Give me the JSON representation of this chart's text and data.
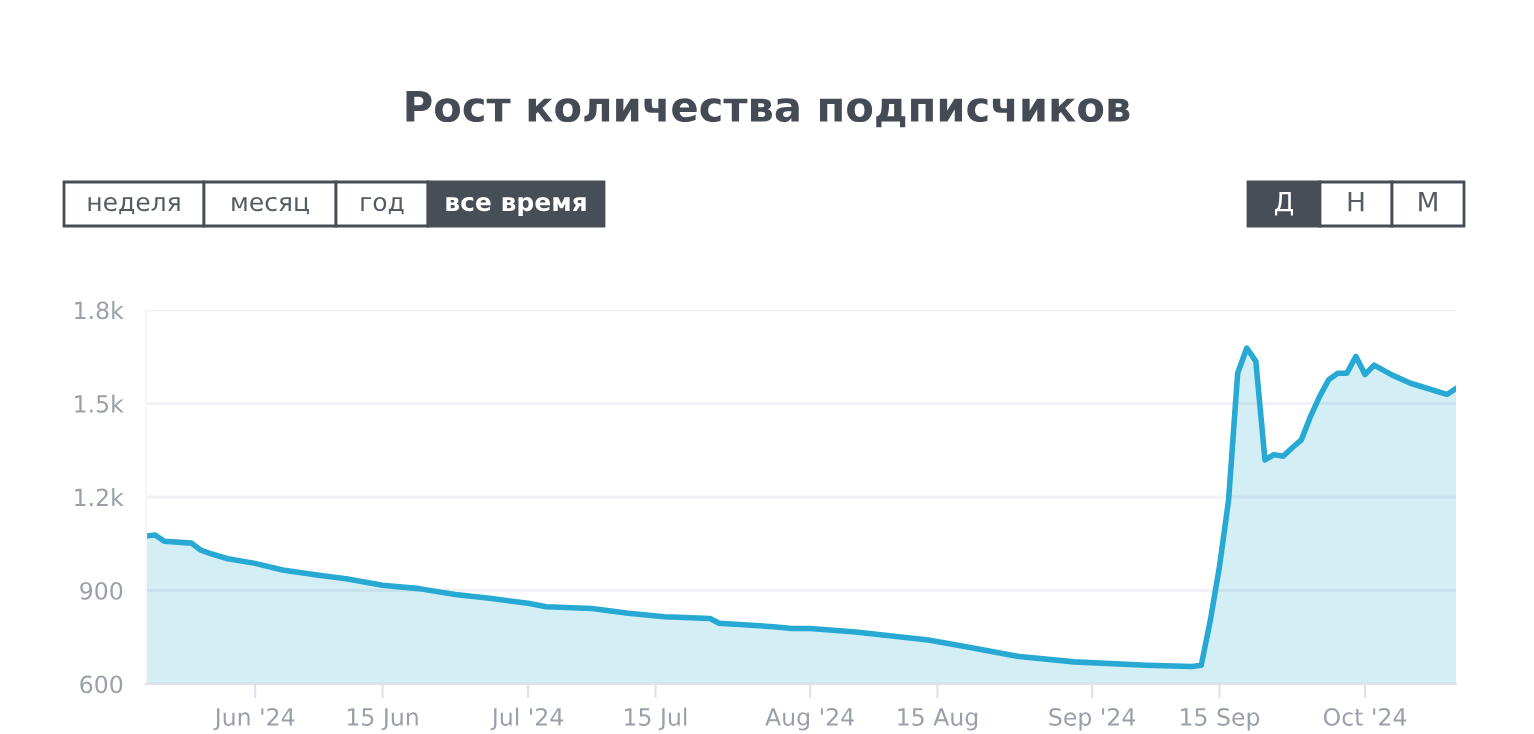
{
  "chart_data": {
    "type": "area",
    "title": "Рост количества подписчиков",
    "annotations": [
      "неделя",
      "месяц",
      "год",
      "все время",
      "Д",
      "Н",
      "М"
    ],
    "x": [
      "2024-05-20",
      "2024-05-21",
      "2024-05-22",
      "2024-05-25",
      "2024-05-26",
      "2024-05-27",
      "2024-05-29",
      "2024-06-01",
      "2024-06-04",
      "2024-06-08",
      "2024-06-11",
      "2024-06-15",
      "2024-06-19",
      "2024-06-23",
      "2024-06-27",
      "2024-07-01",
      "2024-07-03",
      "2024-07-08",
      "2024-07-12",
      "2024-07-16",
      "2024-07-21",
      "2024-07-22",
      "2024-07-28",
      "2024-07-30",
      "2024-08-01",
      "2024-08-06",
      "2024-08-14",
      "2024-08-18",
      "2024-08-24",
      "2024-08-30",
      "2024-09-07",
      "2024-09-12",
      "2024-09-13",
      "2024-09-14",
      "2024-09-15",
      "2024-09-16",
      "2024-09-17",
      "2024-09-18",
      "2024-09-19",
      "2024-09-20",
      "2024-09-21",
      "2024-09-22",
      "2024-09-23",
      "2024-09-24",
      "2024-09-25",
      "2024-09-26",
      "2024-09-27",
      "2024-09-28",
      "2024-09-29",
      "2024-09-30",
      "2024-10-01",
      "2024-10-02",
      "2024-10-04",
      "2024-10-06",
      "2024-10-10",
      "2024-10-11"
    ],
    "series": [
      {
        "color": "#27a9d3",
        "values": [
          1075,
          1078,
          1058,
          1052,
          1030,
          1019,
          1002,
          987,
          966,
          949,
          938,
          917,
          906,
          887,
          874,
          859,
          848,
          842,
          827,
          816,
          810,
          795,
          784,
          778,
          778,
          767,
          741,
          720,
          688,
          671,
          660,
          656,
          660,
          805,
          977,
          1190,
          1597,
          1678,
          1635,
          1319,
          1336,
          1331,
          1358,
          1383,
          1458,
          1522,
          1576,
          1597,
          1597,
          1651,
          1593,
          1623,
          1591,
          1565,
          1529,
          1548
        ]
      }
    ],
    "xlim": [
      "2024-05-20",
      "2024-10-11"
    ],
    "xticks": [
      {
        "value": "2024-06-01",
        "label": "Jun '24"
      },
      {
        "value": "2024-06-15",
        "label": "15 Jun"
      },
      {
        "value": "2024-07-01",
        "label": "Jul '24"
      },
      {
        "value": "2024-07-15",
        "label": "15 Jul"
      },
      {
        "value": "2024-08-01",
        "label": "Aug '24"
      },
      {
        "value": "2024-08-15",
        "label": "15 Aug"
      },
      {
        "value": "2024-09-01",
        "label": "Sep '24"
      },
      {
        "value": "2024-09-15",
        "label": "15 Sep"
      },
      {
        "value": "2024-10-01",
        "label": "Oct '24"
      }
    ],
    "ylim": [
      600,
      1800
    ],
    "yticks": [
      600,
      900,
      {
        "value": 1200,
        "label": "1.2k"
      },
      {
        "value": 1500,
        "label": "1.5k"
      },
      {
        "value": 1800,
        "label": "1.8k"
      }
    ],
    "grid": "y",
    "legend": false,
    "marker": "none",
    "line_style": "solid"
  }
}
